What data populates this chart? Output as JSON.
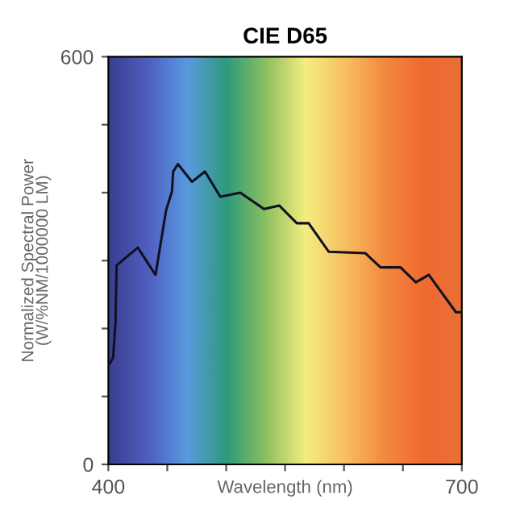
{
  "chart_data": {
    "type": "line",
    "title": "CIE D65",
    "xlabel": "Wavelength (nm)",
    "ylabel": "Normalized Spectral Power\n(W/%NM/1000000 LM)",
    "xlim": [
      400,
      700
    ],
    "ylim": [
      0,
      600
    ],
    "xticks": [
      400,
      {
        "value": 450,
        "label": null
      },
      {
        "value": 500,
        "label": null
      },
      {
        "value": 550,
        "label": null
      },
      {
        "value": 600,
        "label": null
      },
      {
        "value": 650,
        "label": null
      },
      700
    ],
    "yticks": [
      0,
      {
        "value": 100,
        "label": null
      },
      {
        "value": 200,
        "label": null
      },
      {
        "value": 300,
        "label": null
      },
      {
        "value": 400,
        "label": null
      },
      {
        "value": 500,
        "label": null
      },
      600
    ],
    "grid": false,
    "legend": false,
    "marker": "none",
    "line_style": "solid",
    "series": [
      {
        "color": "#111122",
        "x": [
          400,
          404,
          406,
          407,
          425,
          440,
          449,
          454,
          455,
          459,
          471,
          482,
          495,
          512,
          532,
          545,
          560,
          570,
          587,
          618,
          631,
          648,
          661,
          672,
          695,
          700
        ],
        "values": [
          145,
          157,
          208,
          293,
          319,
          279,
          374,
          402,
          431,
          442,
          416,
          431,
          394,
          400,
          376,
          381,
          355,
          355,
          313,
          311,
          290,
          290,
          268,
          279,
          224,
          224
        ]
      }
    ]
  }
}
